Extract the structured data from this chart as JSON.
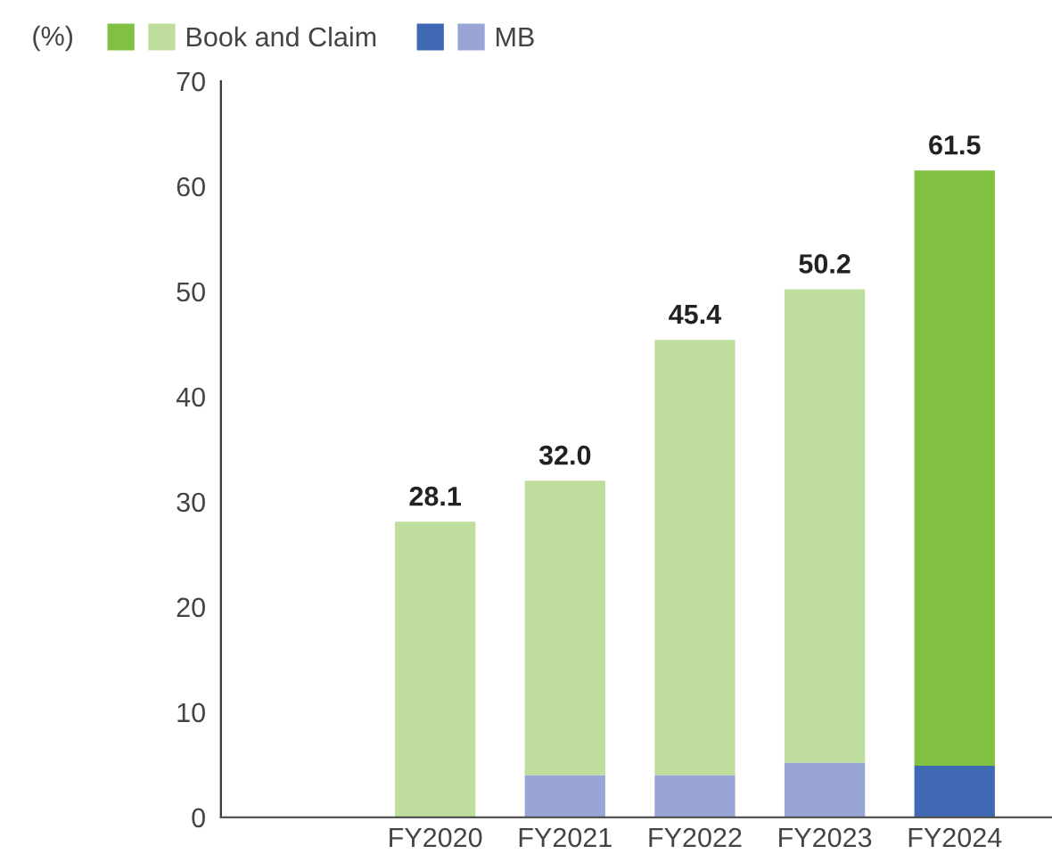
{
  "chart_data": {
    "type": "bar",
    "stacked": true,
    "ylabel": "(%)",
    "categories": [
      "FY2020",
      "FY2021",
      "FY2022",
      "FY2023",
      "FY2024"
    ],
    "series": [
      {
        "name": "MB",
        "colors": [
          "#98a5d5",
          "#98a5d5",
          "#98a5d5",
          "#98a5d5",
          "#3f69b3"
        ],
        "values": [
          0,
          4.0,
          4.0,
          5.2,
          4.9
        ]
      },
      {
        "name": "Book and Claim",
        "colors": [
          "#bfdd9c",
          "#bfdd9c",
          "#bfdd9c",
          "#bfdd9c",
          "#80c142"
        ],
        "values": [
          28.1,
          28.0,
          41.4,
          45.0,
          56.6
        ]
      }
    ],
    "totals": [
      "28.1",
      "32.0",
      "45.4",
      "50.2",
      "61.5"
    ],
    "ylim": [
      0,
      70
    ],
    "yticks": [
      0,
      10,
      20,
      30,
      40,
      50,
      60,
      70
    ],
    "grid": false,
    "legend": "top left"
  }
}
